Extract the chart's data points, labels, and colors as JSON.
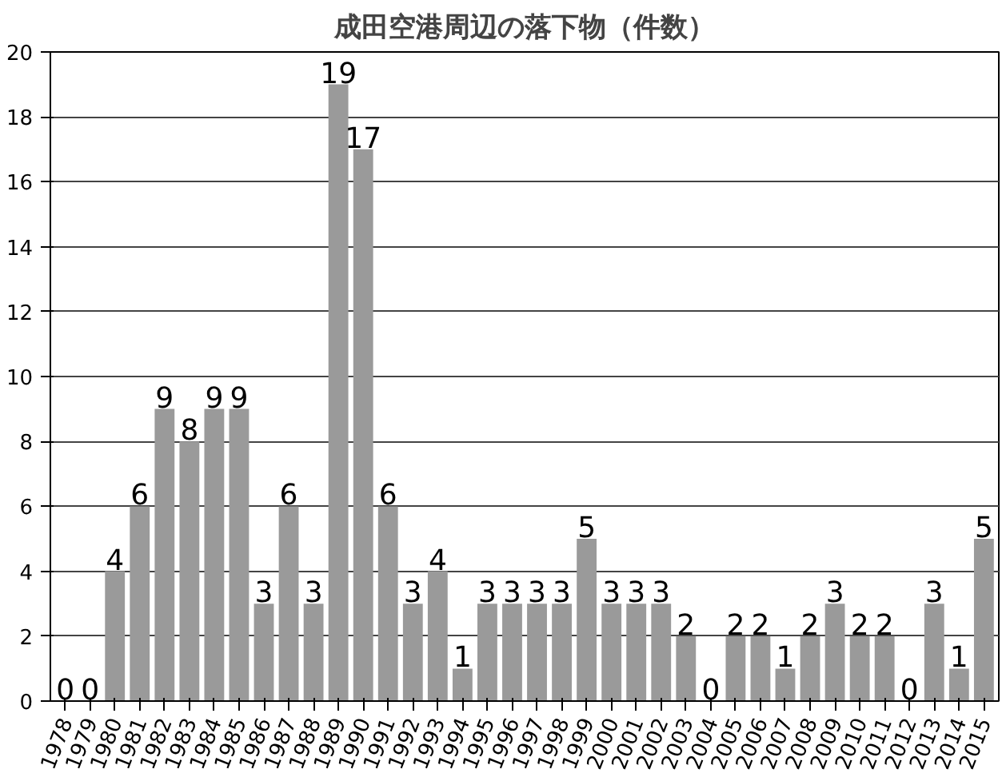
{
  "chart_data": {
    "type": "bar",
    "title": "成田空港周辺の落下物（件数）",
    "categories": [
      "1978",
      "1979",
      "1980",
      "1981",
      "1982",
      "1983",
      "1984",
      "1985",
      "1986",
      "1987",
      "1988",
      "1989",
      "1990",
      "1991",
      "1992",
      "1993",
      "1994",
      "1995",
      "1996",
      "1997",
      "1998",
      "1999",
      "2000",
      "2001",
      "2002",
      "2003",
      "2004",
      "2005",
      "2006",
      "2007",
      "2008",
      "2009",
      "2010",
      "2011",
      "2012",
      "2013",
      "2014",
      "2015"
    ],
    "values": [
      0,
      0,
      4,
      6,
      9,
      8,
      9,
      9,
      3,
      6,
      3,
      19,
      17,
      6,
      3,
      4,
      1,
      3,
      3,
      3,
      3,
      5,
      3,
      3,
      3,
      2,
      0,
      2,
      2,
      1,
      2,
      3,
      2,
      2,
      0,
      3,
      1,
      5
    ],
    "color": "#9a9a9a",
    "ylim": [
      0,
      20
    ],
    "yticks": [
      0,
      2,
      4,
      6,
      8,
      10,
      12,
      14,
      16,
      18,
      20
    ],
    "grid": "y",
    "data_labels": true
  }
}
